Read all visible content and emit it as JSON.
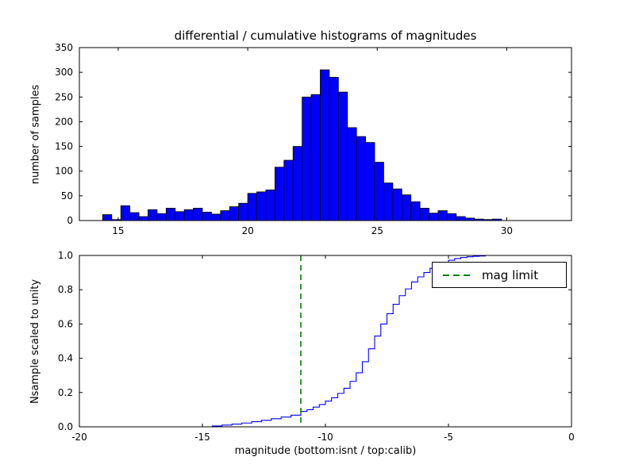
{
  "chart_data": [
    {
      "type": "bar",
      "name": "differential-histogram",
      "title": "differential / cumulative histograms of magnitudes",
      "ylabel": "number of samples",
      "xlim": [
        13.5,
        32.5
      ],
      "ylim": [
        0,
        350
      ],
      "xticks": [
        15,
        20,
        25,
        30
      ],
      "xtick_labels": [
        "15",
        "20",
        "25",
        "30"
      ],
      "yticks": [
        0,
        50,
        100,
        150,
        200,
        250,
        300,
        350
      ],
      "ytick_labels": [
        "0",
        "50",
        "100",
        "150",
        "200",
        "250",
        "300",
        "350"
      ],
      "bar_color": "#0000ff",
      "bar_edge": "#000000",
      "bin_start": 14.4,
      "bin_width": 0.35,
      "counts": [
        12,
        2,
        30,
        16,
        8,
        22,
        14,
        25,
        18,
        22,
        25,
        17,
        13,
        20,
        28,
        35,
        55,
        58,
        62,
        108,
        122,
        150,
        250,
        255,
        305,
        290,
        260,
        188,
        170,
        158,
        118,
        76,
        64,
        52,
        38,
        25,
        15,
        20,
        14,
        8,
        5,
        3,
        2,
        3
      ],
      "grid": false
    },
    {
      "type": "line",
      "name": "cumulative-histogram",
      "xlabel": "magnitude (bottom:isnt / top:calib)",
      "ylabel": "Nsample scaled to unity",
      "xlim": [
        -20,
        0
      ],
      "ylim": [
        0,
        1
      ],
      "xticks": [
        -20,
        -15,
        -10,
        -5,
        0
      ],
      "xtick_labels": [
        "-20",
        "-15",
        "-10",
        "-5",
        "0"
      ],
      "yticks": [
        0,
        0.2,
        0.4,
        0.6,
        0.8,
        1.0
      ],
      "ytick_labels": [
        "0.0",
        "0.2",
        "0.4",
        "0.6",
        "0.8",
        "1.0"
      ],
      "line_color": "#0000ff",
      "step": true,
      "points": [
        [
          -20,
          0
        ],
        [
          -15,
          0
        ],
        [
          -14.6,
          0.005
        ],
        [
          -14.2,
          0.01
        ],
        [
          -13.8,
          0.016
        ],
        [
          -13.4,
          0.022
        ],
        [
          -13,
          0.03
        ],
        [
          -12.6,
          0.038
        ],
        [
          -12.2,
          0.047
        ],
        [
          -11.8,
          0.057
        ],
        [
          -11.4,
          0.068
        ],
        [
          -11,
          0.09
        ],
        [
          -10.75,
          0.1
        ],
        [
          -10.5,
          0.115
        ],
        [
          -10.25,
          0.13
        ],
        [
          -10,
          0.15
        ],
        [
          -9.75,
          0.17
        ],
        [
          -9.5,
          0.195
        ],
        [
          -9.25,
          0.225
        ],
        [
          -9,
          0.265
        ],
        [
          -8.75,
          0.315
        ],
        [
          -8.5,
          0.38
        ],
        [
          -8.25,
          0.455
        ],
        [
          -8,
          0.53
        ],
        [
          -7.75,
          0.6
        ],
        [
          -7.5,
          0.66
        ],
        [
          -7.25,
          0.715
        ],
        [
          -7,
          0.765
        ],
        [
          -6.75,
          0.805
        ],
        [
          -6.5,
          0.845
        ],
        [
          -6.25,
          0.875
        ],
        [
          -6,
          0.9
        ],
        [
          -5.75,
          0.925
        ],
        [
          -5.5,
          0.945
        ],
        [
          -5.25,
          0.96
        ],
        [
          -5,
          0.972
        ],
        [
          -4.75,
          0.982
        ],
        [
          -4.5,
          0.988
        ],
        [
          -4.25,
          0.992
        ],
        [
          -4,
          0.995
        ],
        [
          -3.75,
          0.997
        ],
        [
          -3.5,
          1.0
        ],
        [
          0,
          1.0
        ]
      ],
      "vline": {
        "x": -11,
        "color": "#008000",
        "style": "dashed",
        "label": "mag limit"
      },
      "legend": {
        "position": "upper right",
        "entries": [
          {
            "label": "mag limit",
            "color": "#008000",
            "style": "dashed"
          }
        ]
      },
      "grid": false
    }
  ]
}
